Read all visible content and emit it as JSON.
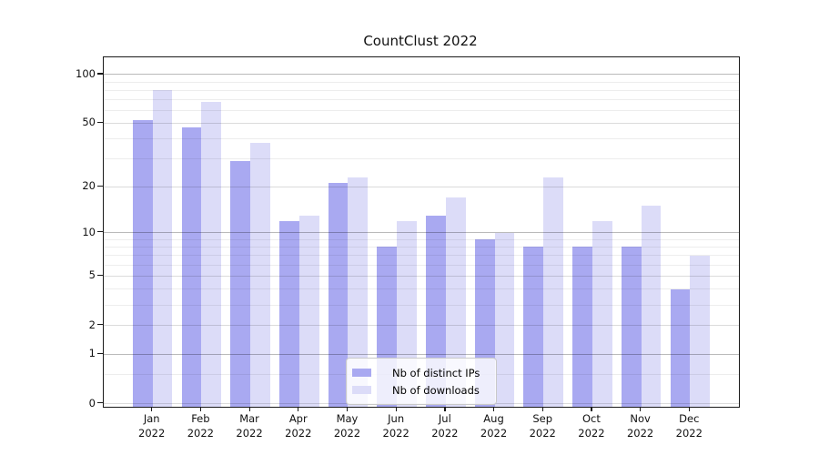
{
  "chart_data": {
    "type": "bar",
    "title": "CountClust 2022",
    "categories": [
      "Jan",
      "Feb",
      "Mar",
      "Apr",
      "May",
      "Jun",
      "Jul",
      "Aug",
      "Sep",
      "Oct",
      "Nov",
      "Dec"
    ],
    "x_year_label": "2022",
    "series": [
      {
        "name": "Nb of distinct IPs",
        "color": "#a9a9f1",
        "values": [
          52,
          47,
          29,
          12,
          21,
          8,
          13,
          9,
          8,
          8,
          8,
          4
        ]
      },
      {
        "name": "Nb of downloads",
        "color": "#dcdcf8",
        "values": [
          80,
          68,
          38,
          13,
          23,
          12,
          17,
          10,
          23,
          12,
          15,
          7
        ]
      }
    ],
    "yscale": "log1p",
    "y_major_ticks": [
      0,
      1,
      2,
      5,
      10,
      20,
      50,
      100
    ],
    "y_minor_ticks": [
      0.5,
      3,
      4,
      6,
      7,
      8,
      9,
      30,
      40,
      60,
      70,
      80,
      90
    ],
    "ylim": [
      0,
      128
    ],
    "xlabel": "",
    "ylabel": "",
    "grid": true,
    "legend_position": "lower center"
  }
}
